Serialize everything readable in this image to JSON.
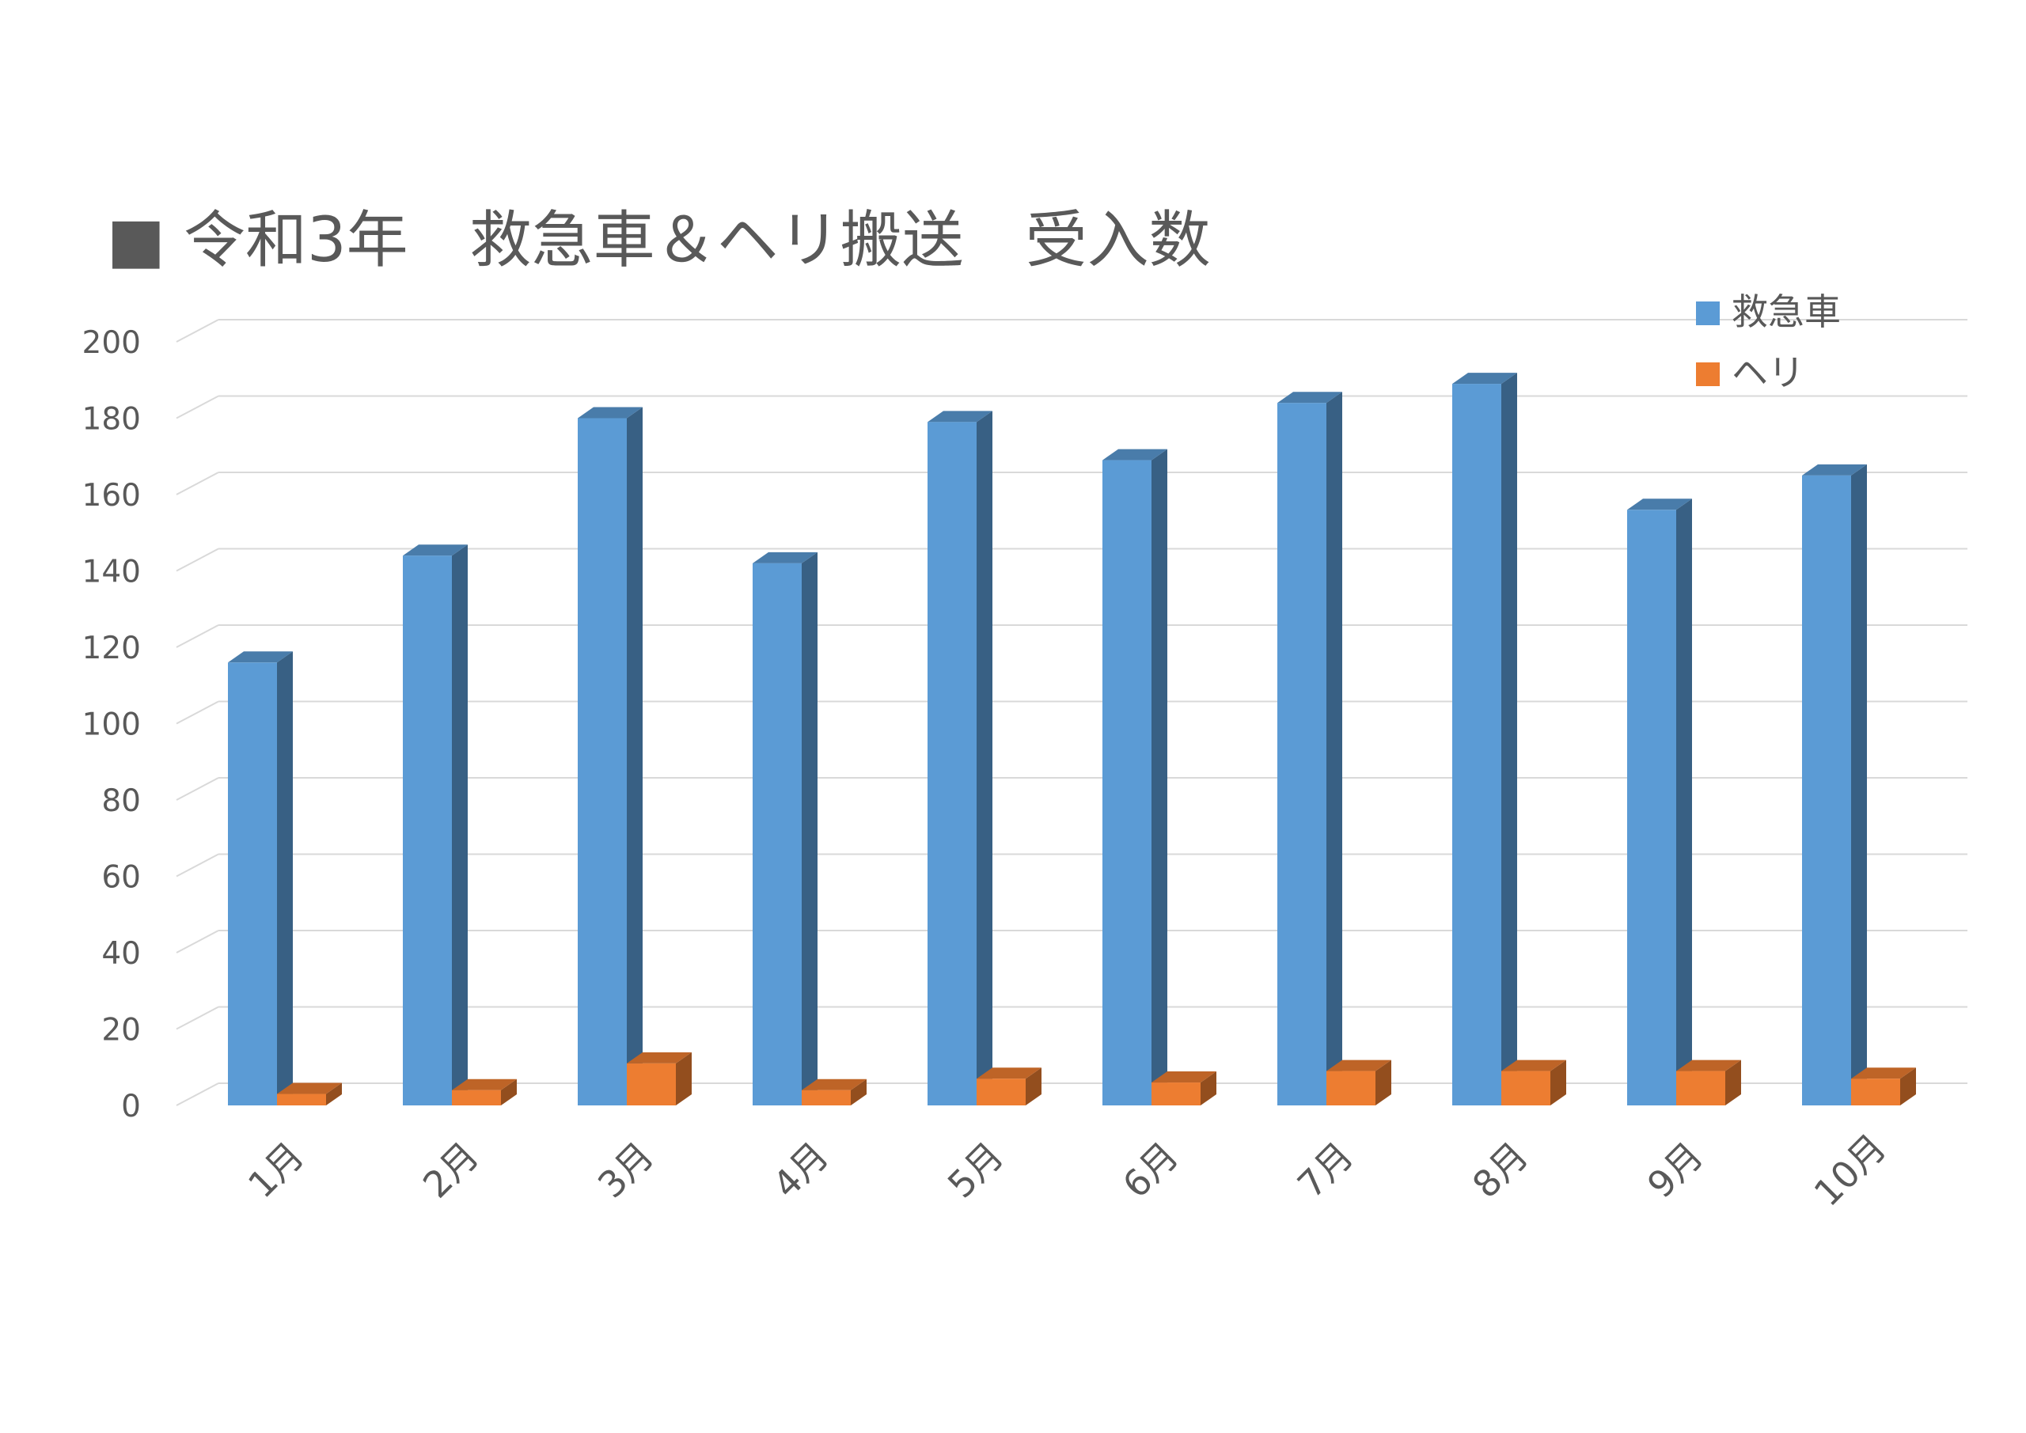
{
  "chart_data": {
    "type": "bar",
    "title": "令和3年　救急車＆ヘリ搬送　受入数",
    "title_marker": "■",
    "categories": [
      "1月",
      "2月",
      "3月",
      "4月",
      "5月",
      "6月",
      "7月",
      "8月",
      "9月",
      "10月"
    ],
    "series": [
      {
        "name": "救急車",
        "values": [
          116,
          144,
          180,
          142,
          179,
          169,
          184,
          189,
          156,
          165
        ],
        "color": "#5B9BD5"
      },
      {
        "name": "ヘリ",
        "values": [
          3,
          4,
          11,
          4,
          7,
          6,
          9,
          9,
          9,
          7
        ],
        "color": "#ED7D31"
      }
    ],
    "ylim": [
      0,
      200
    ],
    "yticks": [
      0,
      20,
      40,
      60,
      80,
      100,
      120,
      140,
      160,
      180,
      200
    ],
    "xlabel": "",
    "ylabel": "",
    "grid": true,
    "legend_position": "top-right",
    "style": "3d-column"
  }
}
